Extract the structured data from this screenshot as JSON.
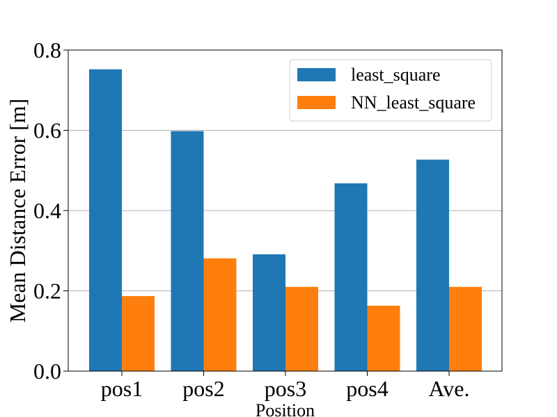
{
  "chart_data": {
    "type": "bar",
    "title": "",
    "xlabel": "Position",
    "ylabel": "Mean Distance Error [m]",
    "categories": [
      "pos1",
      "pos2",
      "pos3",
      "pos4",
      "Ave."
    ],
    "series": [
      {
        "name": "least_square",
        "color": "#1f77b4",
        "values": [
          0.752,
          0.598,
          0.291,
          0.468,
          0.527
        ]
      },
      {
        "name": "NN_least_square",
        "color": "#ff7f0e",
        "values": [
          0.187,
          0.281,
          0.21,
          0.163,
          0.21
        ]
      }
    ],
    "ylim": [
      0,
      0.8
    ],
    "yticks": [
      "0.0",
      "0.2",
      "0.4",
      "0.6",
      "0.8"
    ],
    "grid": "horizontal",
    "legend_position": "top-right"
  }
}
